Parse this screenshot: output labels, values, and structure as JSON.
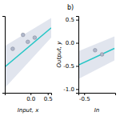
{
  "chart_data": [
    {
      "type": "line",
      "xlabel": "Input, x",
      "xlim": [
        -0.75,
        0.6
      ],
      "ylim": [
        -0.55,
        0.55
      ],
      "xticks": [
        {
          "value": 0.0,
          "label": "0.0"
        },
        0.5
      ],
      "tick_labels": "x",
      "series": [
        {
          "type": "area",
          "color": "#C8D0E0",
          "x": [
            -0.75,
            0.6
          ],
          "upper": [
            0.12,
            0.52
          ],
          "lower": [
            -0.48,
            0.24
          ]
        },
        {
          "type": "line",
          "color": "#26C6C6",
          "x": [
            -0.75,
            0.6
          ],
          "values": [
            -0.18,
            0.38
          ]
        },
        {
          "type": "scatter",
          "color": "#B0B8CC",
          "x": [
            -0.52,
            -0.22,
            -0.08,
            0.12
          ],
          "values": [
            0.08,
            0.28,
            0.18,
            0.24
          ]
        }
      ]
    },
    {
      "type": "line",
      "title": "b)",
      "xlabel": "In",
      "ylabel": "Output, y",
      "xlim": [
        -0.65,
        0.3
      ],
      "ylim": [
        -1.08,
        0.58
      ],
      "xticks": [
        -0.5
      ],
      "yticks": [
        0.5,
        {
          "value": 0.0,
          "label": "0.0"
        },
        -0.5,
        {
          "value": -1.0,
          "label": "-1.0"
        }
      ],
      "series": [
        {
          "type": "area",
          "color": "#C8D0E0",
          "x": [
            -0.65,
            0.28
          ],
          "upper": [
            -0.18,
            0.14
          ],
          "lower": [
            -0.78,
            -0.38
          ]
        },
        {
          "type": "line",
          "color": "#26C6C6",
          "x": [
            -0.65,
            0.28
          ],
          "values": [
            -0.48,
            -0.12
          ]
        },
        {
          "type": "scatter",
          "color": "#B0B8CC",
          "x": [
            -0.22,
            -0.04
          ],
          "values": [
            -0.16,
            -0.25
          ]
        }
      ]
    }
  ]
}
